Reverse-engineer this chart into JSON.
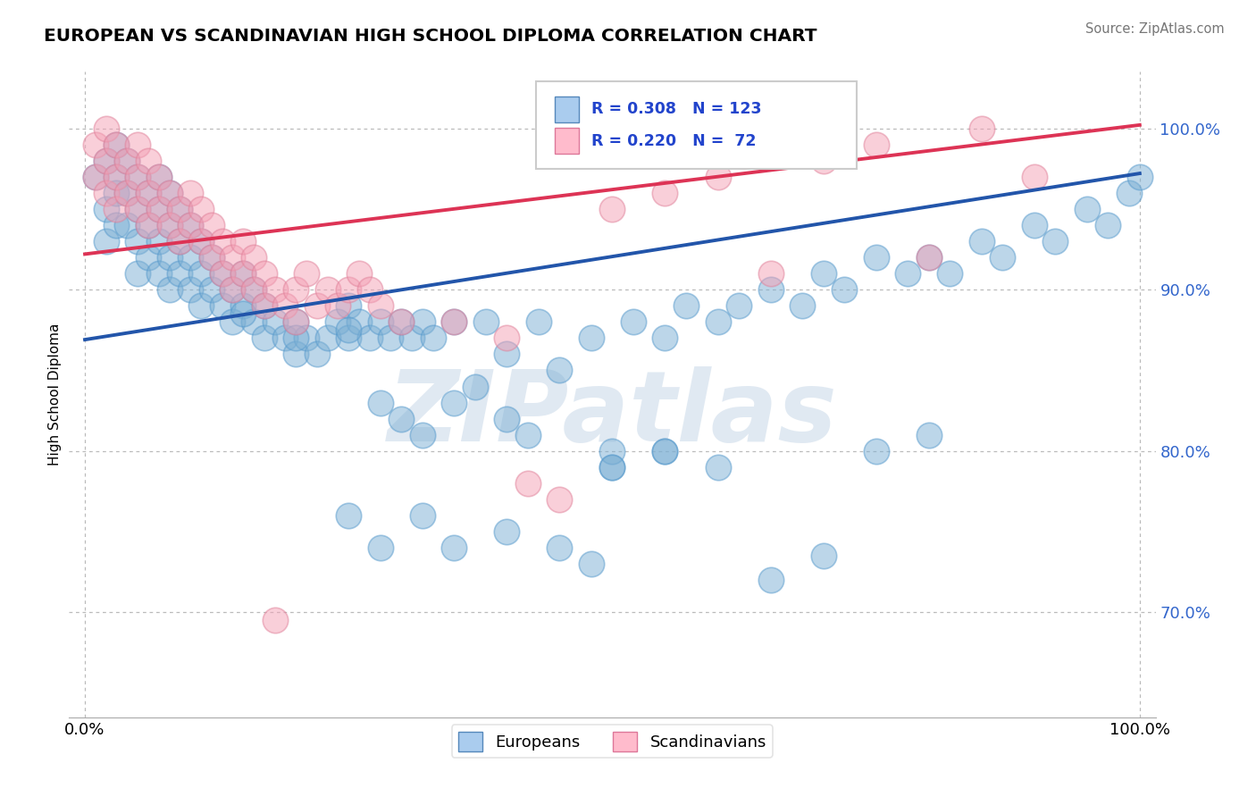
{
  "title": "EUROPEAN VS SCANDINAVIAN HIGH SCHOOL DIPLOMA CORRELATION CHART",
  "source": "Source: ZipAtlas.com",
  "ylabel": "High School Diploma",
  "legend_europeans": "Europeans",
  "legend_scandinavians": "Scandinavians",
  "blue_color": "#7BAFD4",
  "pink_color": "#F4A0B5",
  "blue_line_color": "#2255AA",
  "pink_line_color": "#DD3355",
  "R_blue": 0.308,
  "N_blue": 123,
  "R_pink": 0.22,
  "N_pink": 72,
  "watermark": "ZIPatlas",
  "blue_line_x0": 0.0,
  "blue_line_y0": 0.869,
  "blue_line_x1": 1.0,
  "blue_line_y1": 0.972,
  "pink_line_x0": 0.0,
  "pink_line_y0": 0.922,
  "pink_line_x1": 1.0,
  "pink_line_y1": 1.002,
  "ylim_low": 0.635,
  "ylim_high": 1.035,
  "xlim_low": -0.015,
  "xlim_high": 1.015
}
